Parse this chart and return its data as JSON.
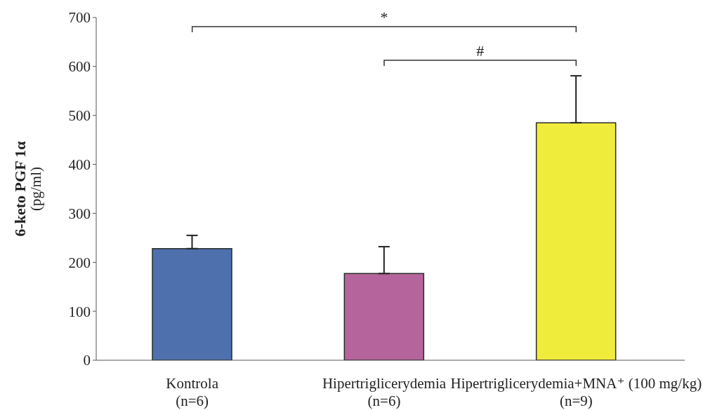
{
  "chart_data": {
    "type": "bar",
    "categories": [
      "Kontrola\n(n=6)",
      "Hipertriglicerydemia\n(n=6)",
      "Hipertriglicerydemia+MNA⁺ (100 mg/kg)\n(n=9)"
    ],
    "values": [
      228,
      177,
      485
    ],
    "colors": [
      "#4e71ae",
      "#b5659b",
      "#f0ec3c"
    ],
    "errors": [
      27,
      55,
      96
    ],
    "ylabel": "6-keto PGF 1α\n(pg/ml)",
    "ylim": [
      0,
      700
    ],
    "yticks": [
      0,
      100,
      200,
      300,
      400,
      500,
      600,
      700
    ],
    "annotations": [
      "*",
      "#"
    ]
  }
}
